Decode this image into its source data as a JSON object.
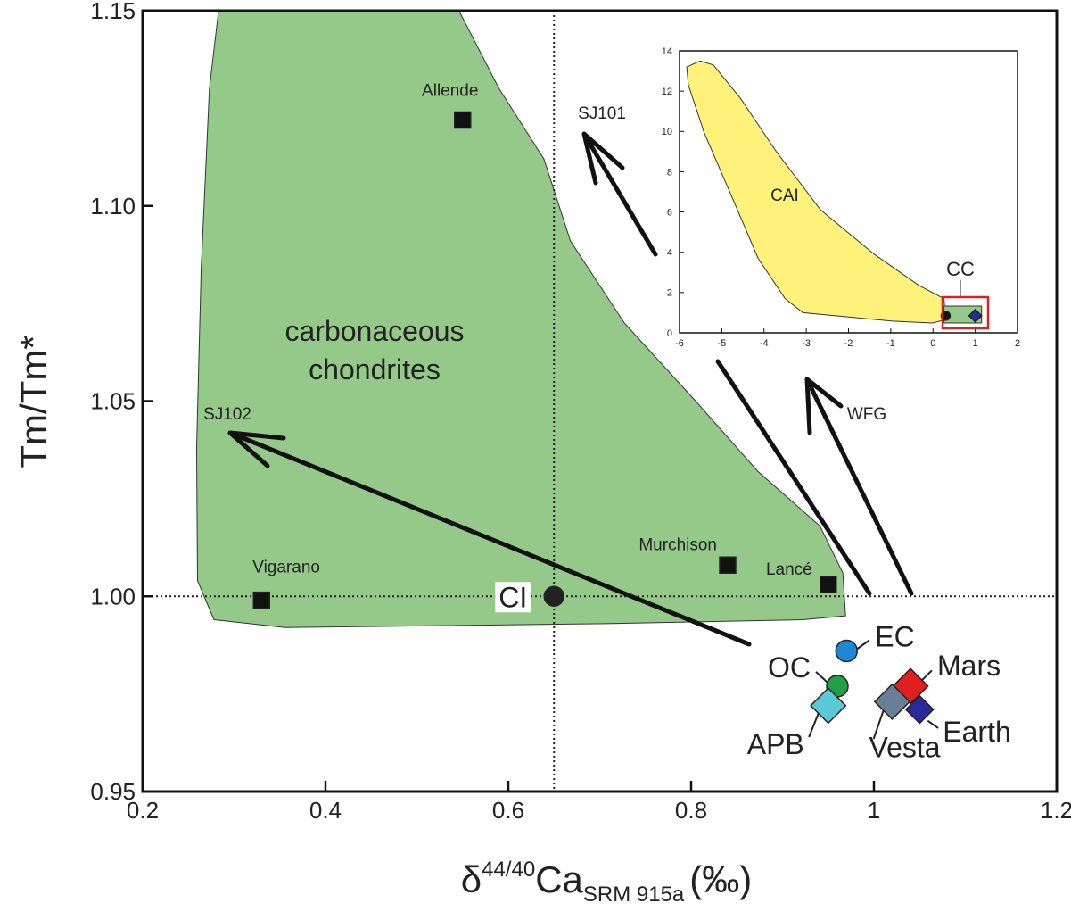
{
  "chart_data": [
    {
      "type": "scatter",
      "xlim": [
        0.2,
        1.2
      ],
      "ylim": [
        0.95,
        1.15
      ],
      "xticks": [
        0.2,
        0.4,
        0.6,
        0.8,
        1,
        1.2
      ],
      "yticks": [
        0.95,
        {
          "value": 1,
          "label": "1.00"
        },
        1.05,
        {
          "value": 1.1,
          "label": "1.10"
        },
        1.15
      ],
      "x_label": {
        "symbol": "δ",
        "superscript": "44/40",
        "base": "Ca",
        "subscript": "SRM 915a",
        "unit": "(‰)"
      },
      "y_label": "Tm/Tm*",
      "reference_lines": {
        "x": 0.65,
        "y": 1
      },
      "regions": [
        {
          "label": [
            "carbonaceous",
            "chondrites"
          ],
          "color": "#94c98a",
          "x": [
            0.283,
            0.546,
            0.59,
            0.639,
            0.668,
            0.727,
            0.805,
            0.873,
            0.941,
            0.966,
            0.969,
            0.922,
            0.707,
            0.356,
            0.278,
            0.26,
            0.259,
            0.264,
            0.273
          ],
          "y": [
            1.15,
            1.15,
            1.13,
            1.112,
            1.091,
            1.07,
            1.05,
            1.032,
            1.018,
            1.006,
            0.995,
            0.994,
            0.993,
            0.992,
            0.994,
            1.004,
            1.038,
            1.084,
            1.13
          ]
        }
      ],
      "points": [
        {
          "name": "Allende",
          "marker": "square",
          "color": "#111111",
          "x": 0.55,
          "y": 1.122
        },
        {
          "name": "Vigarano",
          "marker": "square",
          "color": "#111111",
          "x": 0.33,
          "y": 0.999
        },
        {
          "name": "Murchison",
          "marker": "square",
          "color": "#111111",
          "x": 0.84,
          "y": 1.008
        },
        {
          "name": "Lancé",
          "marker": "square",
          "color": "#111111",
          "x": 0.95,
          "y": 1.003
        },
        {
          "name": "CI",
          "marker": "circle",
          "color": "#222222",
          "x": 0.65,
          "y": 1
        },
        {
          "name": "EC",
          "marker": "circle",
          "color": "#1e88d6",
          "x": 0.97,
          "y": 0.986
        },
        {
          "name": "OC",
          "marker": "circle",
          "color": "#22a045",
          "x": 0.96,
          "y": 0.977
        },
        {
          "name": "APB",
          "marker": "diamond",
          "color": "#5bc8d8",
          "x": 0.95,
          "y": 0.972
        },
        {
          "name": "Mars",
          "marker": "diamond",
          "color": "#e02020",
          "x": 1.04,
          "y": 0.977
        },
        {
          "name": "Vesta",
          "marker": "diamond",
          "color": "#6a7f96",
          "x": 1.02,
          "y": 0.973
        },
        {
          "name": "Earth",
          "marker": "diamond",
          "color": "#2a2a9a",
          "x": 1.05,
          "y": 0.971
        }
      ],
      "annotations": [
        "SJ102",
        "SJ101",
        "WFG"
      ]
    },
    {
      "type": "scatter",
      "xlim": [
        -6,
        2
      ],
      "ylim": [
        0,
        14
      ],
      "xticks": [
        -6,
        -5,
        -4,
        -3,
        -2,
        -1,
        0,
        1,
        2
      ],
      "yticks": [
        0,
        2,
        4,
        6,
        8,
        10,
        12,
        14
      ],
      "regions": [
        {
          "label": [
            "CAI"
          ],
          "color": "#fff27a",
          "x": [
            -5.83,
            -5.51,
            -5.2,
            -4.56,
            -3.71,
            -2.66,
            -1.39,
            -0.33,
            0.26,
            0.3,
            -0.01,
            -0.96,
            -3.08,
            -3.5,
            -4.14,
            -4.77,
            -5.41,
            -5.79
          ],
          "y": [
            13.2,
            13.5,
            13.3,
            11.65,
            9.0,
            6.1,
            3.9,
            2.35,
            1.7,
            0.66,
            0.49,
            0.58,
            1.0,
            1.7,
            3.7,
            6.8,
            9.9,
            12.3
          ]
        },
        {
          "label": [
            "CC"
          ],
          "color": "#94c98a",
          "x": [
            0.26,
            1.15,
            1.15,
            0.26
          ],
          "y": [
            0.49,
            0.49,
            1.33,
            1.33
          ]
        }
      ],
      "points": [
        {
          "marker": "circle",
          "color": "#111111",
          "x": 0.3,
          "y": 0.85
        },
        {
          "marker": "diamond",
          "color": "#2a2a9a",
          "x": 1.0,
          "y": 0.85
        }
      ]
    }
  ]
}
